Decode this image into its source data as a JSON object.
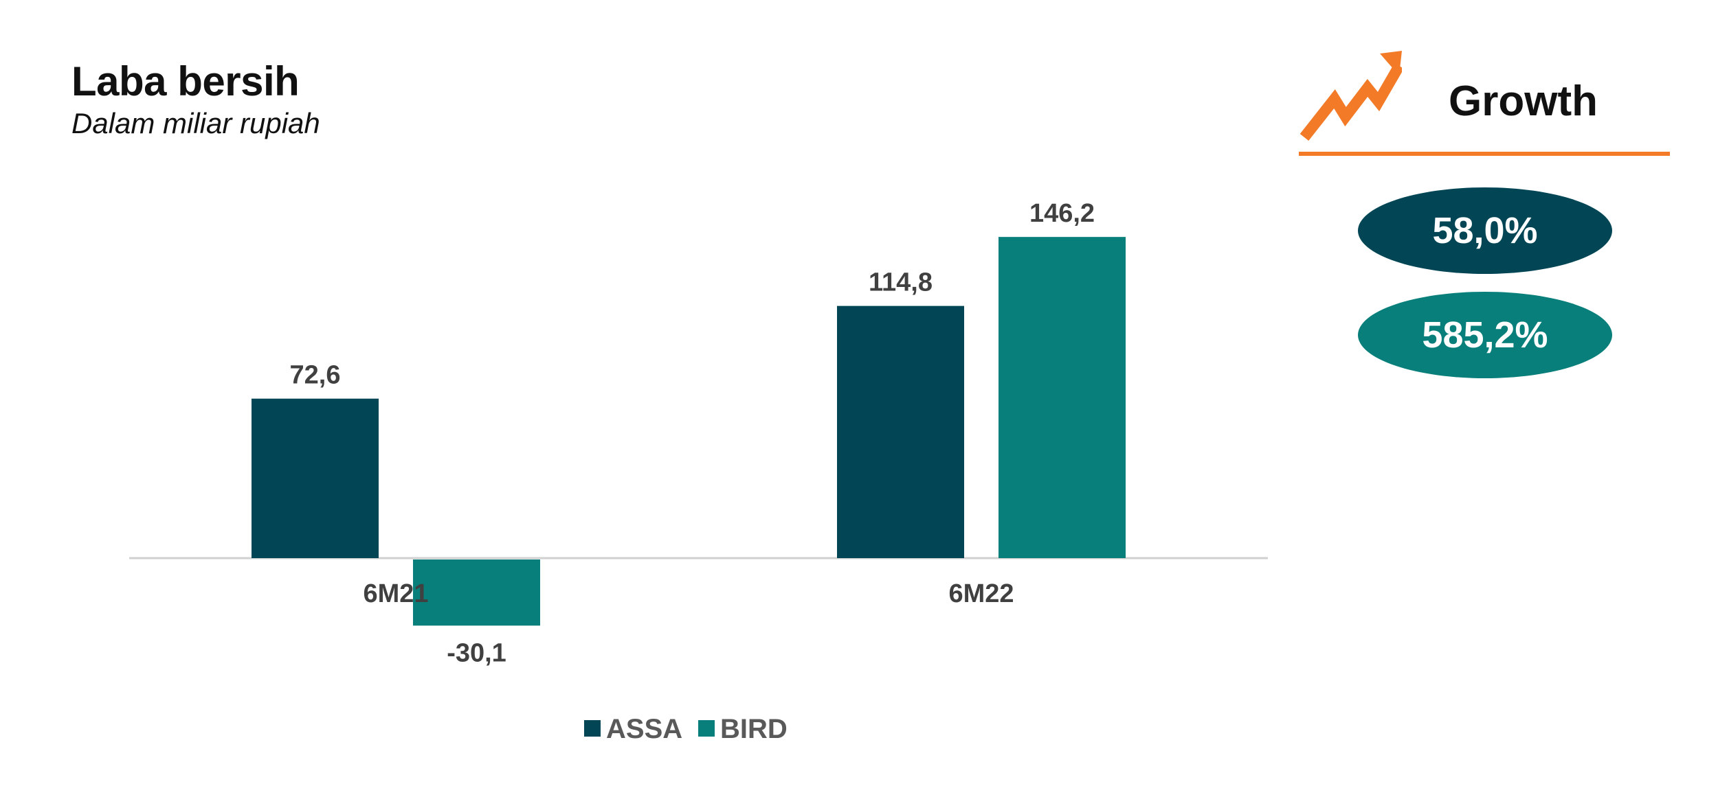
{
  "header": {
    "title": "Laba bersih",
    "subtitle": "Dalam miliar rupiah"
  },
  "chart_data": {
    "type": "bar",
    "categories": [
      "6M21",
      "6M22"
    ],
    "series": [
      {
        "name": "ASSA",
        "values": [
          72.6,
          114.8
        ],
        "labels": [
          "72,6",
          "114,8"
        ],
        "color": "#024656"
      },
      {
        "name": "BIRD",
        "values": [
          -30.1,
          146.2
        ],
        "labels": [
          "-30,1",
          "146,2"
        ],
        "color": "#087f7a"
      }
    ],
    "title": "Laba bersih",
    "subtitle": "Dalam miliar rupiah",
    "xlabel": "",
    "ylabel": "",
    "grid": false,
    "legend": "bottom-center"
  },
  "growth": {
    "label": "Growth",
    "icon": "trend-up-arrow-icon",
    "accent_color": "#f37b28",
    "values": [
      {
        "series": "ASSA",
        "text": "58,0%",
        "color": "#024656"
      },
      {
        "series": "BIRD",
        "text": "585,2%",
        "color": "#087f7a"
      }
    ]
  }
}
